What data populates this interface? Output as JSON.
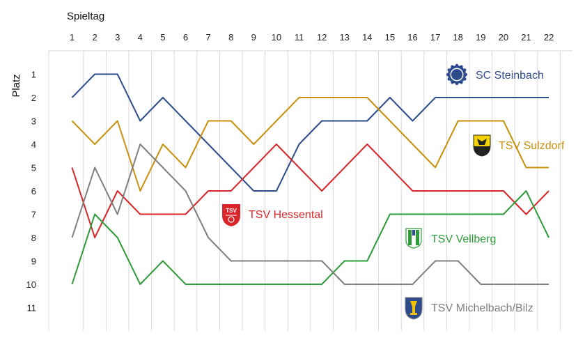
{
  "chart_data": {
    "type": "line",
    "xlabel": "Spieltag",
    "ylabel": "Platz",
    "x": [
      1,
      2,
      3,
      4,
      5,
      6,
      7,
      8,
      9,
      10,
      11,
      12,
      13,
      14,
      15,
      16,
      17,
      18,
      19,
      20,
      21,
      22
    ],
    "y_ticks": [
      1,
      2,
      3,
      4,
      5,
      6,
      7,
      8,
      9,
      10,
      11
    ],
    "ylim": [
      0,
      12
    ],
    "y_inverted": true,
    "grid": "vertical",
    "series": [
      {
        "name": "SC Steinbach",
        "color": "#2e4b8c",
        "icon": "sc-steinbach-crest",
        "values": [
          2,
          1,
          1,
          3,
          2,
          3,
          4,
          5,
          6,
          6,
          4,
          3,
          3,
          3,
          2,
          3,
          2,
          2,
          2,
          2,
          2,
          2
        ]
      },
      {
        "name": "TSV Sulzdorf",
        "color": "#c9900d",
        "icon": "tsv-sulzdorf-crest",
        "values": [
          3,
          4,
          3,
          6,
          4,
          5,
          3,
          3,
          4,
          3,
          2,
          2,
          2,
          2,
          3,
          4,
          5,
          3,
          3,
          3,
          5,
          5
        ]
      },
      {
        "name": "TSV Hessental",
        "color": "#d8262a",
        "icon": "tsv-hessental-crest",
        "values": [
          5,
          8,
          6,
          7,
          7,
          7,
          6,
          6,
          5,
          4,
          5,
          6,
          5,
          4,
          5,
          6,
          6,
          6,
          6,
          6,
          7,
          6
        ]
      },
      {
        "name": "TSV Vellberg",
        "color": "#2e9b3a",
        "icon": "tsv-vellberg-crest",
        "values": [
          10,
          7,
          8,
          10,
          9,
          10,
          10,
          10,
          10,
          10,
          10,
          10,
          9,
          9,
          7,
          7,
          7,
          7,
          7,
          7,
          6,
          8
        ]
      },
      {
        "name": "TSV Michelbach/Bilz",
        "color": "#7f7f7f",
        "icon": "tsv-michelbach-crest",
        "values": [
          8,
          5,
          7,
          4,
          5,
          6,
          8,
          9,
          9,
          9,
          9,
          9,
          10,
          10,
          10,
          10,
          9,
          9,
          10,
          10,
          10,
          10
        ]
      }
    ]
  }
}
